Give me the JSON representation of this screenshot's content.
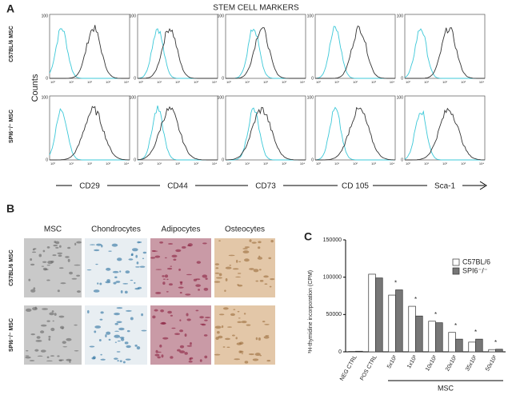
{
  "panel_a": {
    "letter": "A",
    "title": "STEM CELL MARKERS",
    "y_label": "Counts",
    "rows": [
      "C57BL/6 MSC",
      "SPI6⁻/⁻ MSC"
    ],
    "markers": [
      "CD29",
      "CD44",
      "CD73",
      "CD 105",
      "Sca-1"
    ],
    "histogram_yticks": [
      0,
      100
    ],
    "histogram_xticks": [
      "10⁰",
      "10¹",
      "10²",
      "10³",
      "10⁴"
    ]
  },
  "panel_b": {
    "letter": "B",
    "columns": [
      "MSC",
      "Chondrocytes",
      "Adipocytes",
      "Osteocytes"
    ],
    "rows": [
      "C57BL/6 MSC",
      "SPI6⁻/⁻ MSC"
    ]
  },
  "chart_data": {
    "type": "bar",
    "letter": "C",
    "y_label": "³H-thymidine incorporation (CPM)",
    "categories": [
      "NEG CTRL",
      "POS CTRL",
      "5x10²",
      "1x10³",
      "10x10²",
      "20x10²",
      "35x10²",
      "50x10²"
    ],
    "series": [
      {
        "name": "C57BL/6",
        "color": "#ffffff",
        "values": [
          500,
          104000,
          76000,
          61000,
          41000,
          26000,
          13000,
          3000
        ]
      },
      {
        "name": "SPI6⁻/⁻",
        "color": "#777777",
        "values": [
          800,
          99000,
          83000,
          48000,
          39000,
          17000,
          17000,
          3500
        ]
      }
    ],
    "ylim": [
      0,
      150000
    ],
    "yticks": [
      0,
      50000,
      100000,
      150000
    ],
    "group_label": "MSC",
    "significance": [
      {
        "category": "5x10²",
        "text": "*"
      },
      {
        "category": "1x10³",
        "text": "*"
      },
      {
        "category": "10x10²",
        "text": "*"
      },
      {
        "category": "20x10²",
        "text": "*"
      },
      {
        "category": "35x10²",
        "text": "*"
      },
      {
        "category": "50x10²",
        "text": "*"
      }
    ]
  }
}
